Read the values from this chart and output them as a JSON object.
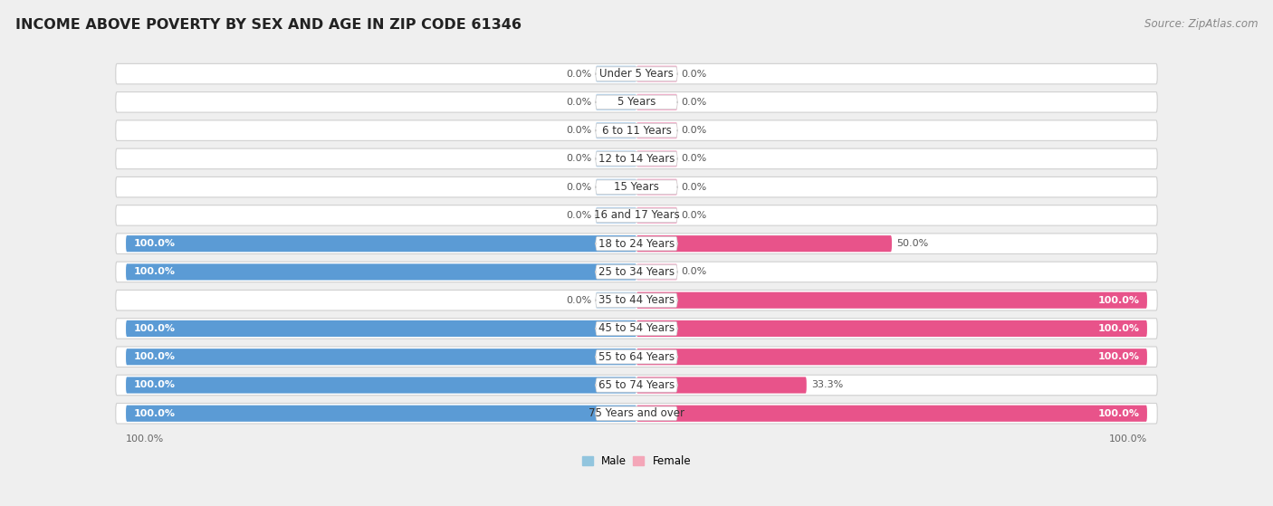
{
  "title": "INCOME ABOVE POVERTY BY SEX AND AGE IN ZIP CODE 61346",
  "source": "Source: ZipAtlas.com",
  "categories": [
    "Under 5 Years",
    "5 Years",
    "6 to 11 Years",
    "12 to 14 Years",
    "15 Years",
    "16 and 17 Years",
    "18 to 24 Years",
    "25 to 34 Years",
    "35 to 44 Years",
    "45 to 54 Years",
    "55 to 64 Years",
    "65 to 74 Years",
    "75 Years and over"
  ],
  "male_values": [
    0.0,
    0.0,
    0.0,
    0.0,
    0.0,
    0.0,
    100.0,
    100.0,
    0.0,
    100.0,
    100.0,
    100.0,
    100.0
  ],
  "female_values": [
    0.0,
    0.0,
    0.0,
    0.0,
    0.0,
    0.0,
    50.0,
    0.0,
    100.0,
    100.0,
    100.0,
    33.3,
    100.0
  ],
  "male_color_full": "#5B9BD5",
  "male_color_zero": "#B8D4EC",
  "female_color_full": "#E8538A",
  "female_color_zero": "#F4ADCA",
  "male_label": "Male",
  "female_label": "Female",
  "male_legend_color": "#92C5DE",
  "female_legend_color": "#F4A6B8",
  "xlim": 100,
  "stub_value": 8,
  "background_color": "#efefef",
  "row_bg_color": "#ffffff",
  "row_border_color": "#d0d0d0",
  "title_fontsize": 11.5,
  "label_fontsize": 8.5,
  "value_fontsize": 8.0,
  "source_fontsize": 8.5
}
